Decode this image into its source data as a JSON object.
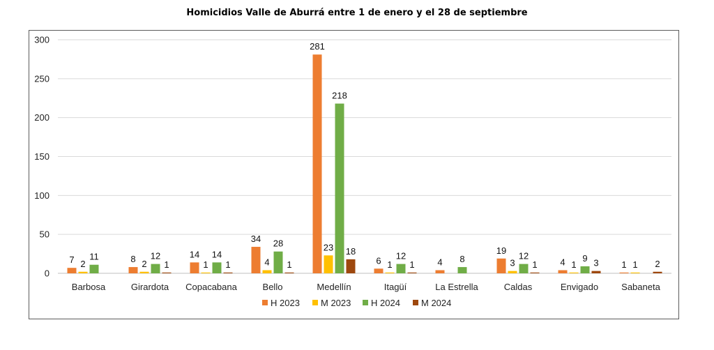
{
  "chart_data": {
    "type": "bar",
    "title": "Homicidios Valle de Aburrá entre 1 de enero y el 28 de septiembre",
    "xlabel": "",
    "ylabel": "",
    "ylim": [
      0,
      300
    ],
    "yticks": [
      0,
      50,
      100,
      150,
      200,
      250,
      300
    ],
    "grid": true,
    "legend_position": "bottom",
    "categories": [
      "Barbosa",
      "Girardota",
      "Copacabana",
      "Bello",
      "Medellín",
      "Itagüí",
      "La Estrella",
      "Caldas",
      "Envigado",
      "Sabaneta"
    ],
    "series": [
      {
        "name": "H 2023",
        "color": "#ED7D31",
        "values": [
          7,
          8,
          14,
          34,
          281,
          6,
          4,
          19,
          4,
          1
        ]
      },
      {
        "name": "M 2023",
        "color": "#FFC000",
        "values": [
          2,
          2,
          1,
          4,
          23,
          1,
          0,
          3,
          1,
          1
        ]
      },
      {
        "name": "H 2024",
        "color": "#70AD47",
        "values": [
          11,
          12,
          14,
          28,
          218,
          12,
          8,
          12,
          9,
          0
        ]
      },
      {
        "name": "M 2024",
        "color": "#9E480E",
        "values": [
          0,
          1,
          1,
          1,
          18,
          1,
          0,
          1,
          3,
          2
        ]
      }
    ],
    "data_labels": [
      [
        7,
        2,
        11,
        null
      ],
      [
        8,
        2,
        12,
        1
      ],
      [
        14,
        1,
        14,
        1
      ],
      [
        34,
        4,
        28,
        1
      ],
      [
        281,
        23,
        218,
        18
      ],
      [
        6,
        1,
        12,
        1
      ],
      [
        4,
        null,
        8,
        null
      ],
      [
        19,
        3,
        12,
        1
      ],
      [
        4,
        1,
        9,
        3
      ],
      [
        1,
        1,
        null,
        2
      ]
    ]
  }
}
